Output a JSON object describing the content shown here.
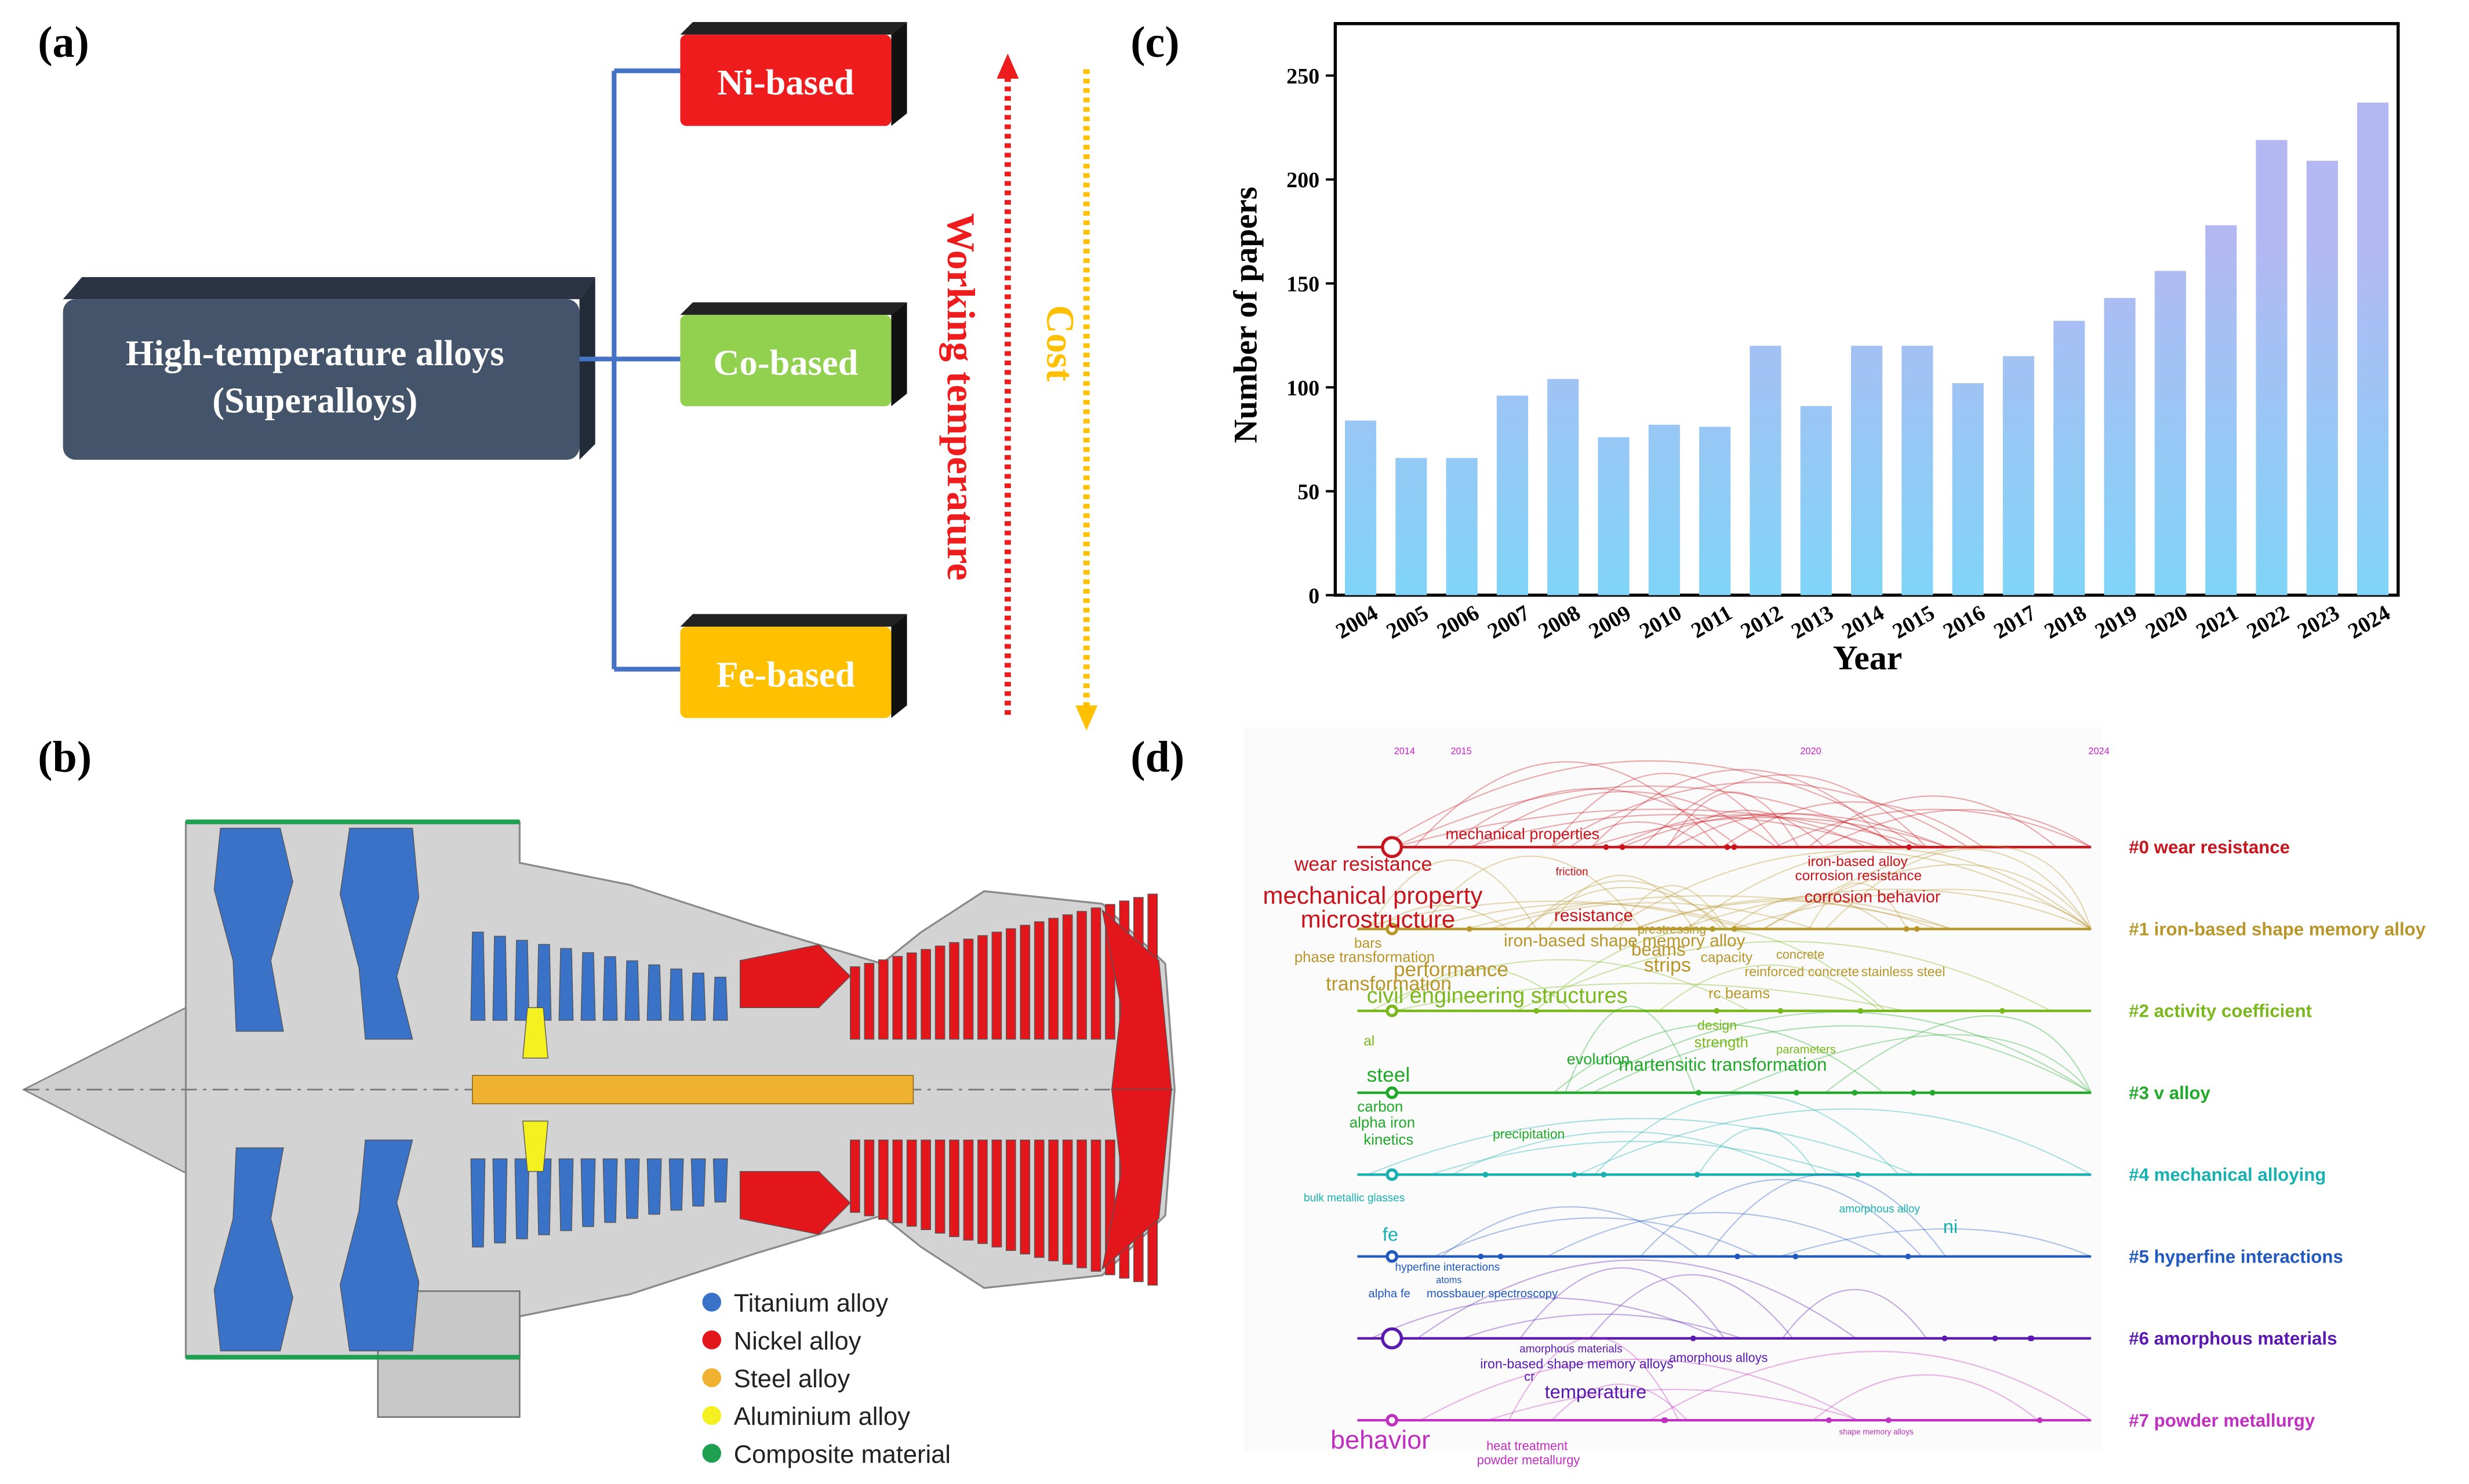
{
  "panel_labels": [
    "(a)",
    "(b)",
    "(c)",
    "(d)"
  ],
  "diagram_a": {
    "root_lines": [
      "High-temperature alloys",
      "(Superalloys)"
    ],
    "branches": [
      {
        "label": "Ni-based",
        "color": "#ee1c1c"
      },
      {
        "label": "Co-based",
        "color": "#92d050"
      },
      {
        "label": "Fe-based",
        "color": "#ffc000"
      }
    ],
    "arrows": [
      {
        "label": "Working temperature",
        "color": "#ee1c1c"
      },
      {
        "label": "Cost",
        "color": "#ffc000"
      }
    ]
  },
  "engine_b": {
    "legend": [
      {
        "name": "Titanium alloy",
        "color": "#3a72c8"
      },
      {
        "name": "Nickel alloy",
        "color": "#e3161c"
      },
      {
        "name": "Steel alloy",
        "color": "#f0b030"
      },
      {
        "name": "Aluminium alloy",
        "color": "#f5f020"
      },
      {
        "name": "Composite material",
        "color": "#1ea050"
      }
    ]
  },
  "chart_data": {
    "type": "bar",
    "xlabel": "Year",
    "ylabel": "Number of papers",
    "categories": [
      "2004",
      "2005",
      "2006",
      "2007",
      "2008",
      "2009",
      "2010",
      "2011",
      "2012",
      "2013",
      "2014",
      "2015",
      "2016",
      "2017",
      "2018",
      "2019",
      "2020",
      "2021",
      "2022",
      "2023",
      "2024"
    ],
    "values": [
      84,
      66,
      66,
      96,
      104,
      76,
      82,
      81,
      120,
      91,
      120,
      120,
      102,
      115,
      132,
      143,
      156,
      178,
      219,
      209,
      237
    ],
    "colors": [
      "#80d4f8",
      "#b4b8f2"
    ],
    "ylim": [
      0,
      275
    ],
    "yticks": [
      0,
      50,
      100,
      150,
      200,
      250
    ],
    "grid": false
  },
  "timeline_d": {
    "years": [
      "2014",
      "2015",
      "2020",
      "2024"
    ],
    "clusters": [
      {
        "label": "#0 wear resistance",
        "color": "#c8141c"
      },
      {
        "label": "#1 iron-based shape memory alloy",
        "color": "#b8962a"
      },
      {
        "label": "#2 activity coefficient",
        "color": "#7ab81e"
      },
      {
        "label": "#3 v alloy",
        "color": "#22a82a"
      },
      {
        "label": "#4 mechanical alloying",
        "color": "#18b0b0"
      },
      {
        "label": "#5 hyperfine interactions",
        "color": "#2058c0"
      },
      {
        "label": "#6 amorphous materials",
        "color": "#5a18b0"
      },
      {
        "label": "#7 powder metallurgy",
        "color": "#c030c0"
      }
    ],
    "keywords": [
      {
        "text": "mechanical properties",
        "cluster": 0
      },
      {
        "text": "wear resistance",
        "cluster": 0
      },
      {
        "text": "mechanical property",
        "cluster": 0
      },
      {
        "text": "microstructure",
        "cluster": 0
      },
      {
        "text": "resistance",
        "cluster": 0
      },
      {
        "text": "iron-based alloy",
        "cluster": 0
      },
      {
        "text": "corrosion resistance",
        "cluster": 0
      },
      {
        "text": "corrosion behavior",
        "cluster": 0
      },
      {
        "text": "friction",
        "cluster": 0
      },
      {
        "text": "bars",
        "cluster": 1
      },
      {
        "text": "phase transformation",
        "cluster": 1
      },
      {
        "text": "performance",
        "cluster": 1
      },
      {
        "text": "transformation",
        "cluster": 1
      },
      {
        "text": "iron-based shape memory alloy",
        "cluster": 1
      },
      {
        "text": "beams",
        "cluster": 1
      },
      {
        "text": "strips",
        "cluster": 1
      },
      {
        "text": "capacity",
        "cluster": 1
      },
      {
        "text": "concrete",
        "cluster": 1
      },
      {
        "text": "reinforced concrete",
        "cluster": 1
      },
      {
        "text": "stainless steel",
        "cluster": 1
      },
      {
        "text": "prestressing",
        "cluster": 1
      },
      {
        "text": "rc beams",
        "cluster": 1
      },
      {
        "text": "civil engineering structures",
        "cluster": 2
      },
      {
        "text": "design",
        "cluster": 2
      },
      {
        "text": "strength",
        "cluster": 2
      },
      {
        "text": "parameters",
        "cluster": 2
      },
      {
        "text": "al",
        "cluster": 2
      },
      {
        "text": "evolution",
        "cluster": 3
      },
      {
        "text": "martensitic transformation",
        "cluster": 3
      },
      {
        "text": "steel",
        "cluster": 3
      },
      {
        "text": "carbon",
        "cluster": 3
      },
      {
        "text": "alpha iron",
        "cluster": 3
      },
      {
        "text": "kinetics",
        "cluster": 3
      },
      {
        "text": "precipitation",
        "cluster": 3
      },
      {
        "text": "bulk metallic glasses",
        "cluster": 4
      },
      {
        "text": "amorphous alloy",
        "cluster": 4
      },
      {
        "text": "fe",
        "cluster": 4
      },
      {
        "text": "ni",
        "cluster": 4
      },
      {
        "text": "hyperfine interactions",
        "cluster": 5
      },
      {
        "text": "atoms",
        "cluster": 5
      },
      {
        "text": "alpha fe",
        "cluster": 5
      },
      {
        "text": "mossbauer spectroscopy",
        "cluster": 5
      },
      {
        "text": "iron-based shape memory alloys",
        "cluster": 6
      },
      {
        "text": "temperature",
        "cluster": 6
      },
      {
        "text": "amorphous materials",
        "cluster": 6
      },
      {
        "text": "amorphous alloys",
        "cluster": 6
      },
      {
        "text": "cr",
        "cluster": 6
      },
      {
        "text": "behavior",
        "cluster": 7
      },
      {
        "text": "heat treatment",
        "cluster": 7
      },
      {
        "text": "powder metallurgy",
        "cluster": 7
      },
      {
        "text": "shape memory alloys",
        "cluster": 7
      }
    ]
  }
}
